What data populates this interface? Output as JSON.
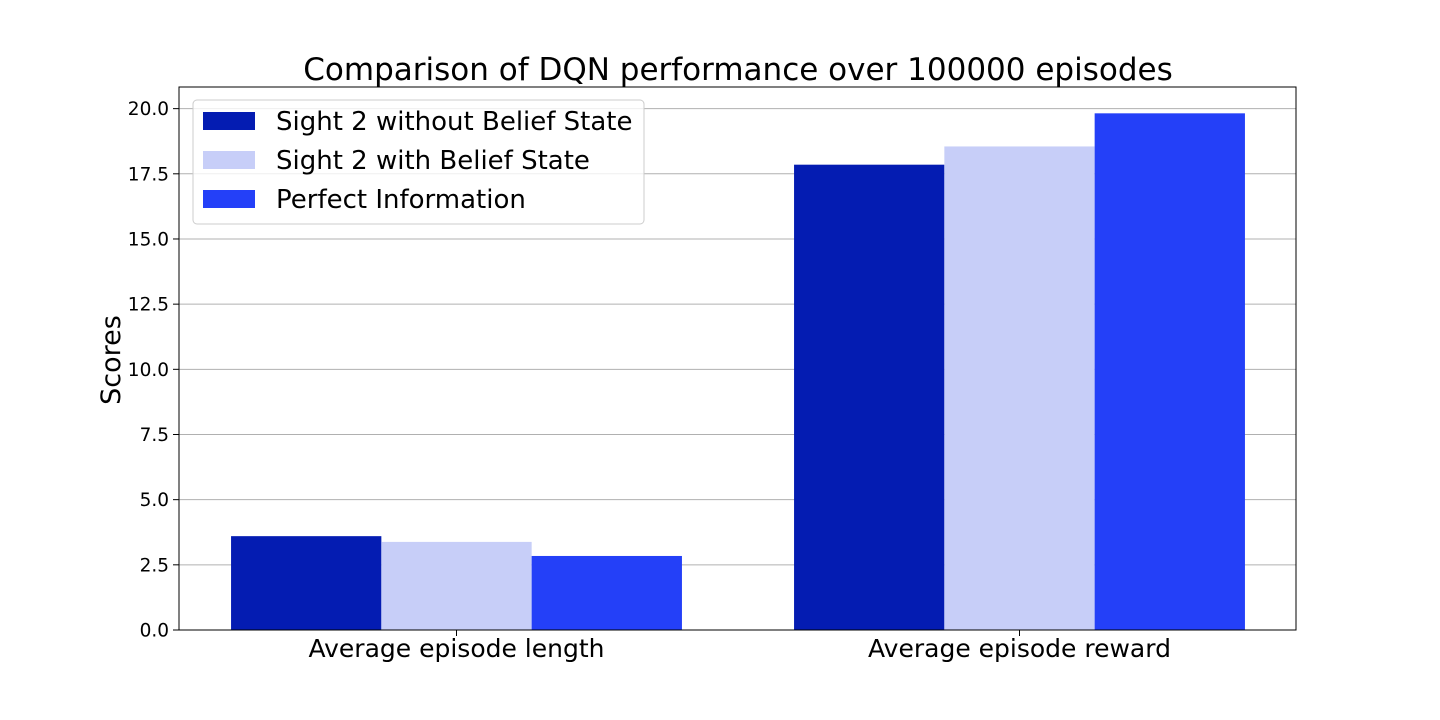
{
  "chart_data": {
    "type": "bar",
    "title": "Comparison of DQN performance over 100000 episodes",
    "xlabel": "",
    "ylabel": "Scores",
    "categories": [
      "Average episode length",
      "Average episode reward"
    ],
    "series": [
      {
        "name": "Sight 2 without Belief State",
        "values": [
          3.6,
          17.85
        ],
        "color": "#041cb2"
      },
      {
        "name": "Sight 2 with Belief State",
        "values": [
          3.38,
          18.55
        ],
        "color": "#c7cef8"
      },
      {
        "name": "Perfect Information",
        "values": [
          2.84,
          19.82
        ],
        "color": "#2440f8"
      }
    ],
    "ylim": [
      0,
      20.83
    ],
    "yticks": [
      "0.0",
      "2.5",
      "5.0",
      "7.5",
      "10.0",
      "12.5",
      "15.0",
      "17.5",
      "20.0"
    ],
    "grid": "horizontal",
    "legend_position": "top-left"
  }
}
